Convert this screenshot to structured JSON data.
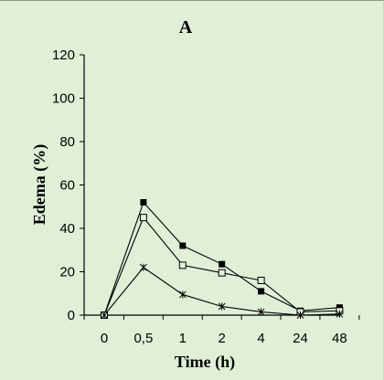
{
  "chart_data": {
    "type": "line",
    "title": "A",
    "xlabel": "Time (h)",
    "ylabel": "Edema (%)",
    "categories": [
      "0",
      "0,5",
      "1",
      "2",
      "4",
      "24",
      "48"
    ],
    "ylim": [
      0,
      120
    ],
    "yticks": [
      "0",
      "20",
      "40",
      "60",
      "80",
      "100",
      "120"
    ],
    "grid": false,
    "legend": "none",
    "series": [
      {
        "marker": "filled-square",
        "values": [
          0,
          52,
          32,
          23.5,
          11,
          2,
          3.5
        ]
      },
      {
        "marker": "open-square",
        "values": [
          0,
          45,
          23,
          19.5,
          16,
          1.5,
          2
        ]
      },
      {
        "marker": "star",
        "values": [
          0,
          22,
          9.5,
          4,
          1.5,
          0,
          0.5
        ]
      }
    ]
  }
}
